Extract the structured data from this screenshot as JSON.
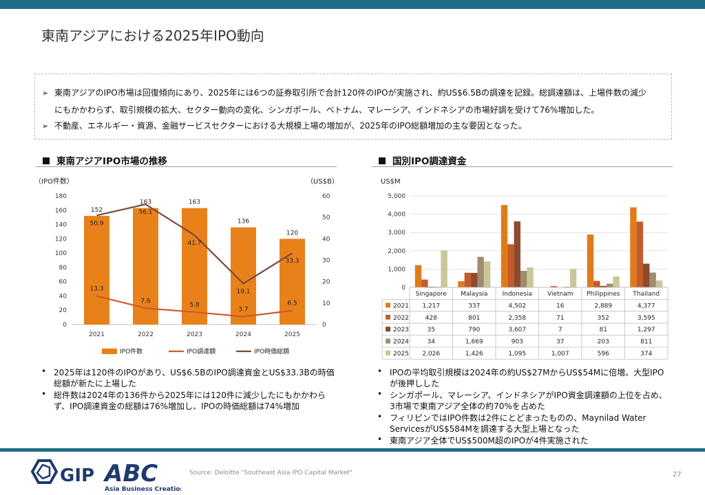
{
  "page": {
    "title": "東南アジアにおける2025年IPO動向",
    "page_number": "27"
  },
  "summary": {
    "lines": [
      "東南アジアのIPO市場は回復傾向にあり、2025年には6つの証券取引所で合計120件のIPOが実施され、約US$6.5Bの調達を記録。総調達額は、上場件数の減少",
      "にもかかわらず、取引規模の拡大、セクター動向の変化、シンガポール、ベトナム、マレーシア、インドネシアの市場好調を受けて76%増加した。",
      "不動産、エネルギー・資源、金融サービスセクターにおける大規模上場の増加が、2025年のIPO総額増加の主な要因となった。"
    ],
    "bullet_symbol": "➢"
  },
  "left_section": {
    "heading": "東南アジアIPO市場の推移",
    "bullets": [
      [
        "2025年は120件のIPOがあり、US$6.5BのIPO調達資金とUS$33.3Bの時価",
        "総額が新たに上場した"
      ],
      [
        "総件数は2024年の136件から2025年には120件に減少したにもかかわら",
        "ず、IPO調達資金の総額は76%増加し、IPOの時価総額は74%増加"
      ]
    ]
  },
  "right_section": {
    "heading": "国別IPO調達資金",
    "bullets": [
      [
        "IPOの平均取引規模は2024年の約US$27MからUS$54Mに倍増。大型IPO",
        "が後押しした"
      ],
      [
        "シンガポール、マレーシア、インドネシアがIPO資金調達額の上位を占め、",
        "3市場で東南アジア全体の約70%を占めた"
      ],
      [
        "フィリピンではIPO件数は2件にとどまったものの、Maynilad Water",
        "ServicesがUS$584Mを調達する大型上場となった"
      ],
      [
        "東南アジア全体でUS$500M超のIPOが4件実施された"
      ]
    ]
  },
  "footer": {
    "source": "Source: Deloitte \"Southeast Asia IPO Capital Market\"",
    "logo_gip": "GIP",
    "logo_abc": "ABC",
    "logo_tagline": "Asia Business Creation"
  },
  "chart_data": [
    {
      "type": "bar+line",
      "title": "東南アジアIPO市場の推移",
      "categories": [
        "2021",
        "2022",
        "2023",
        "2024",
        "2025"
      ],
      "y_left_label": "（IPO件数）",
      "y_right_label": "（US$B）",
      "y_left_ticks": [
        "0",
        "20",
        "40",
        "60",
        "80",
        "100",
        "120",
        "140",
        "160",
        "180"
      ],
      "y_right_ticks": [
        "0",
        "10",
        "20",
        "30",
        "40",
        "50",
        "60"
      ],
      "ylim_left": [
        0,
        180
      ],
      "ylim_right": [
        0,
        60
      ],
      "series": [
        {
          "name": "IPO件数",
          "kind": "bar",
          "axis": "left",
          "color": "#e8811a",
          "values": [
            152,
            163,
            163,
            136,
            120
          ],
          "labels": [
            "152",
            "163",
            "163",
            "136",
            "120"
          ]
        },
        {
          "name": "IPO調達額",
          "kind": "line",
          "axis": "right",
          "color": "#d4572a",
          "values": [
            13.3,
            7.6,
            5.8,
            3.7,
            6.5
          ],
          "labels": [
            "13.3",
            "7.6",
            "5.8",
            "3.7",
            "6.5"
          ]
        },
        {
          "name": "IPO時価総額",
          "kind": "line",
          "axis": "right",
          "color": "#7a4b34",
          "values": [
            50.9,
            56.1,
            41.7,
            19.1,
            33.3
          ],
          "labels": [
            "50.9",
            "56.1",
            "41.7",
            "19.1",
            "33.3"
          ]
        }
      ],
      "legend": "bottom"
    },
    {
      "type": "bar",
      "title": "国別IPO調達資金",
      "ylabel": "US$M",
      "categories": [
        "Singapore",
        "Malaysia",
        "Indonesia",
        "Vietnam",
        "Philippines",
        "Thailand"
      ],
      "ylim": [
        0,
        5000
      ],
      "y_ticks": [
        "0",
        "1,000",
        "2,000",
        "3,000",
        "4,000",
        "5,000"
      ],
      "series": [
        {
          "name": "2021",
          "color": "#e07b1a",
          "values": [
            1217,
            337,
            4502,
            16,
            2889,
            4377
          ],
          "labels": [
            "1,217",
            "337",
            "4,502",
            "16",
            "2,889",
            "4,377"
          ]
        },
        {
          "name": "2022",
          "color": "#c55a2b",
          "values": [
            428,
            801,
            2358,
            71,
            352,
            3595
          ],
          "labels": [
            "428",
            "801",
            "2,358",
            "71",
            "352",
            "3,595"
          ]
        },
        {
          "name": "2023",
          "color": "#8c4a2f",
          "values": [
            35,
            790,
            3607,
            7,
            81,
            1297
          ],
          "labels": [
            "35",
            "790",
            "3,607",
            "7",
            "81",
            "1,297"
          ]
        },
        {
          "name": "2024",
          "color": "#a08c6e",
          "values": [
            34,
            1669,
            903,
            37,
            203,
            811
          ],
          "labels": [
            "34",
            "1,669",
            "903",
            "37",
            "203",
            "811"
          ]
        },
        {
          "name": "2025",
          "color": "#c9c79a",
          "values": [
            2026,
            1426,
            1095,
            1007,
            596,
            374
          ],
          "labels": [
            "2,026",
            "1,426",
            "1,095",
            "1,007",
            "596",
            "374"
          ]
        }
      ],
      "data_table": true
    }
  ]
}
